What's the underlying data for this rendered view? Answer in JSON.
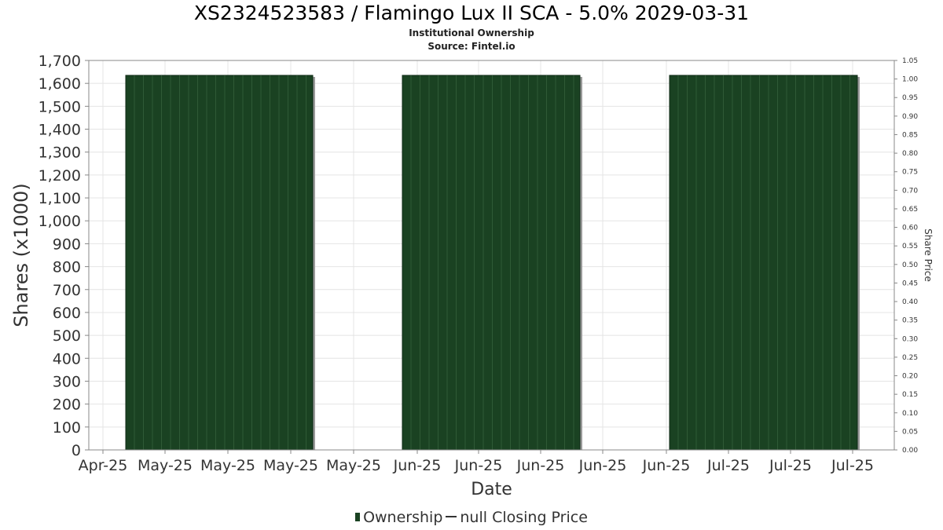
{
  "header": {
    "title": "XS2324523583 / Flamingo Lux II SCA - 5.0% 2029-03-31",
    "subtitle": "Institutional Ownership",
    "source": "Source: Fintel.io"
  },
  "legend": {
    "ownership_label": "Ownership",
    "price_label": "null Closing Price"
  },
  "colors": {
    "bar": "#1a4222",
    "bar_line": "#2f5a36",
    "bar_shadow": "#9a9a9a",
    "grid": "#e4e4e4",
    "axis": "#888888"
  },
  "chart_data": {
    "type": "bar",
    "title": "XS2324523583 / Flamingo Lux II SCA - 5.0% 2029-03-31",
    "subtitle": "Institutional Ownership",
    "xlabel": "Date",
    "ylabel": "Shares (x1000)",
    "y2label": "Share Price",
    "x_tick_labels": [
      "Apr-25",
      "May-25",
      "May-25",
      "May-25",
      "May-25",
      "Jun-25",
      "Jun-25",
      "Jun-25",
      "Jun-25",
      "Jun-25",
      "Jul-25",
      "Jul-25",
      "Jul-25"
    ],
    "ylim": [
      0,
      1700
    ],
    "y_ticks": [
      0,
      100,
      200,
      300,
      400,
      500,
      600,
      700,
      800,
      900,
      1000,
      1100,
      1200,
      1300,
      1400,
      1500,
      1600,
      1700
    ],
    "y2lim": [
      0,
      1.05
    ],
    "y2_ticks": [
      0,
      0.05,
      0.1,
      0.15,
      0.2,
      0.25,
      0.3,
      0.35,
      0.4,
      0.45,
      0.5,
      0.55,
      0.6,
      0.65,
      0.7,
      0.75,
      0.8,
      0.85,
      0.9,
      0.95,
      1.0,
      1.05
    ],
    "grid": true,
    "legend_position": "bottom",
    "series": [
      {
        "name": "Ownership",
        "blocks": [
          {
            "from": "May-25",
            "to": "May-25",
            "value": 1635
          },
          {
            "from": "Jun-25",
            "to": "Jun-25",
            "value": 1635
          },
          {
            "from": "Jun-25",
            "to": "Jul-25",
            "value": 1635
          }
        ]
      },
      {
        "name": "null Closing Price",
        "values": []
      }
    ]
  }
}
